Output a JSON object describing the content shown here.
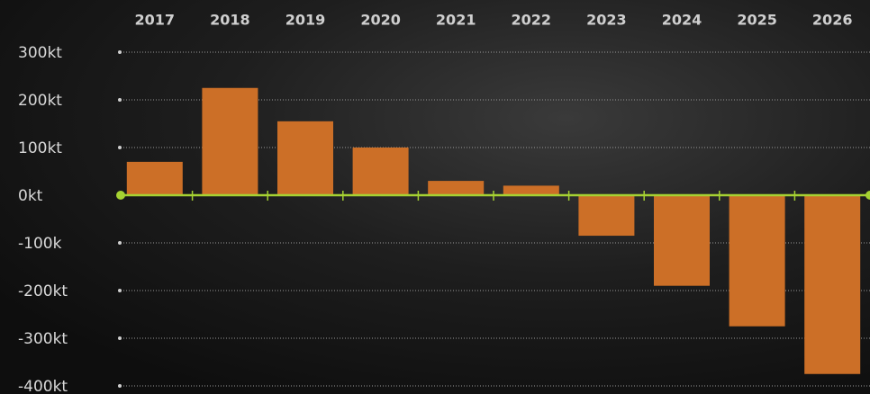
{
  "chart_data": {
    "type": "bar",
    "categories": [
      "2017",
      "2018",
      "2019",
      "2020",
      "2021",
      "2022",
      "2023",
      "2024",
      "2025",
      "2026"
    ],
    "values": [
      70,
      225,
      155,
      100,
      30,
      20,
      -85,
      -190,
      -275,
      -375
    ],
    "color": "#cc6f27",
    "ylim": [
      -400,
      300
    ],
    "yticks": [
      {
        "value": 300,
        "label": "300kt"
      },
      {
        "value": 200,
        "label": "200kt"
      },
      {
        "value": 100,
        "label": "100kt"
      },
      {
        "value": 0,
        "label": "0kt"
      },
      {
        "value": -100,
        "label": "-100k"
      },
      {
        "value": -200,
        "label": "-200kt"
      },
      {
        "value": -300,
        "label": "-300kt"
      },
      {
        "value": -400,
        "label": "-400kt"
      }
    ],
    "grid": true
  }
}
